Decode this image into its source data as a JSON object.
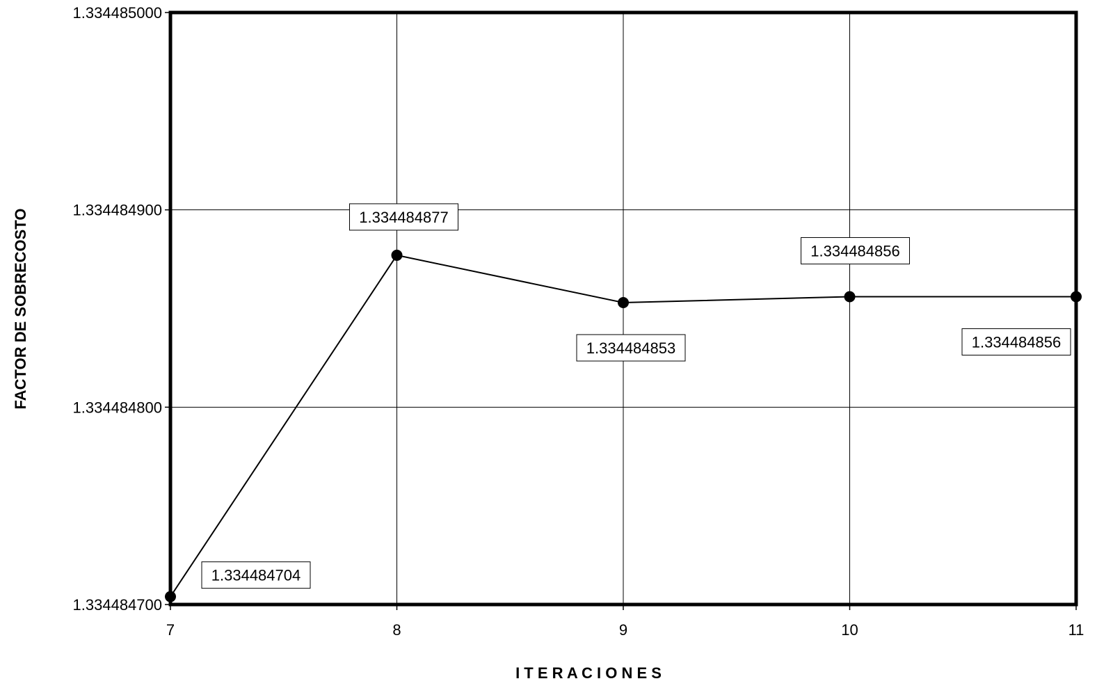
{
  "chart_data": {
    "type": "line",
    "title": "",
    "xlabel": "I T E R A C I O N E S",
    "ylabel": "FACTOR DE SOBRECOSTO",
    "x": [
      7,
      8,
      9,
      10,
      11
    ],
    "xlim": [
      7,
      11
    ],
    "ylim": [
      1.3344847,
      1.334485
    ],
    "y_ticks": [
      "1.334484700",
      "1.334484800",
      "1.334484900",
      "1.334485000"
    ],
    "x_ticks": [
      "7",
      "8",
      "9",
      "10",
      "11"
    ],
    "series": [
      {
        "values": [
          1.334484704,
          1.334484877,
          1.334484853,
          1.334484856,
          1.334484856
        ],
        "labels": [
          "1.334484704",
          "1.334484877",
          "1.334484853",
          "1.334484856",
          "1.334484856"
        ],
        "color": "#000000"
      }
    ],
    "grid": true,
    "legend": "none"
  }
}
